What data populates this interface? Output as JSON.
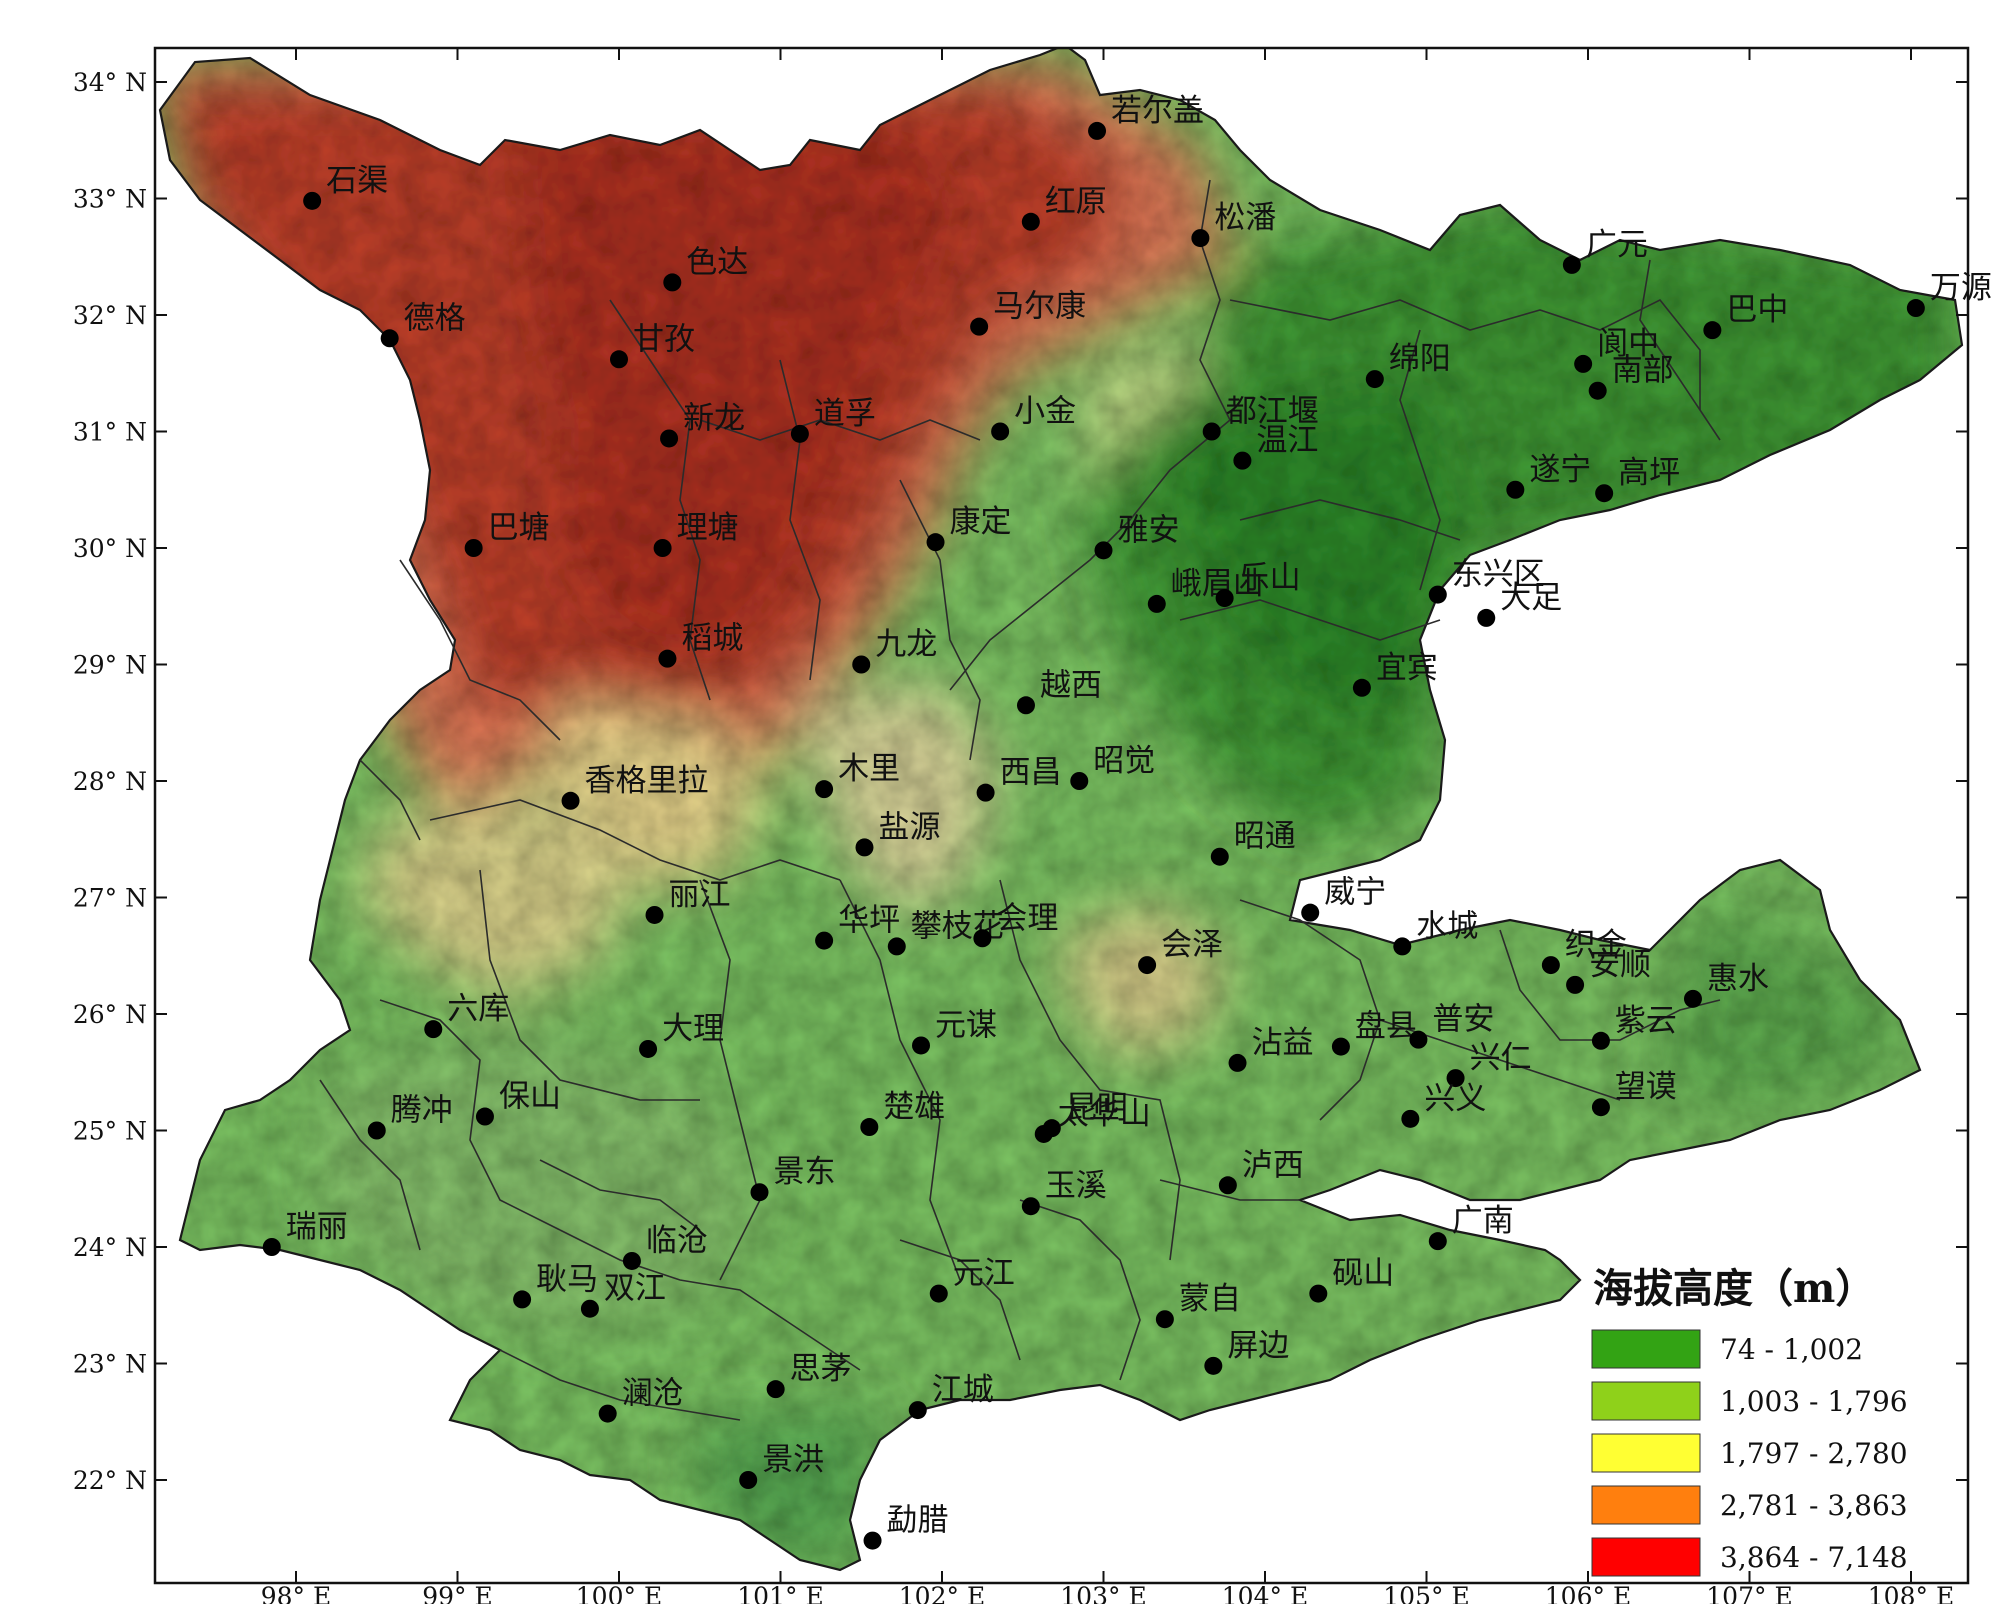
{
  "map": {
    "legend": {
      "title": "海拔高度（m）",
      "classes": [
        {
          "label": "74 - 1,002",
          "color": "#33a314"
        },
        {
          "label": "1,003 - 1,796",
          "color": "#8fd11a"
        },
        {
          "label": "1,797 - 2,780",
          "color": "#ffff33"
        },
        {
          "label": "2,781 - 3,863",
          "color": "#ff7f0e"
        },
        {
          "label": "3,864 - 7,148",
          "color": "#ff0000"
        }
      ]
    },
    "lat_ticks": [
      {
        "label": "34° N",
        "lat": 34
      },
      {
        "label": "33° N",
        "lat": 33
      },
      {
        "label": "32° N",
        "lat": 32
      },
      {
        "label": "31° N",
        "lat": 31
      },
      {
        "label": "30° N",
        "lat": 30
      },
      {
        "label": "29° N",
        "lat": 29
      },
      {
        "label": "28° N",
        "lat": 28
      },
      {
        "label": "27° N",
        "lat": 27
      },
      {
        "label": "26° N",
        "lat": 26
      },
      {
        "label": "25° N",
        "lat": 25
      },
      {
        "label": "24° N",
        "lat": 24
      },
      {
        "label": "23° N",
        "lat": 23
      },
      {
        "label": "22° N",
        "lat": 22
      }
    ],
    "lon_ticks": [
      {
        "label": "98° E",
        "lon": 98
      },
      {
        "label": "99° E",
        "lon": 99
      },
      {
        "label": "100° E",
        "lon": 100
      },
      {
        "label": "101° E",
        "lon": 101
      },
      {
        "label": "102° E",
        "lon": 102
      },
      {
        "label": "103° E",
        "lon": 103
      },
      {
        "label": "104° E",
        "lon": 104
      },
      {
        "label": "105° E",
        "lon": 105
      },
      {
        "label": "106° E",
        "lon": 106
      },
      {
        "label": "107° E",
        "lon": 107
      },
      {
        "label": "108° E",
        "lon": 108
      }
    ],
    "stations": [
      {
        "name": "若尔盖",
        "lon": 102.96,
        "lat": 33.58
      },
      {
        "name": "石渠",
        "lon": 98.1,
        "lat": 32.98
      },
      {
        "name": "红原",
        "lon": 102.55,
        "lat": 32.8
      },
      {
        "name": "松潘",
        "lon": 103.6,
        "lat": 32.66
      },
      {
        "name": "色达",
        "lon": 100.33,
        "lat": 32.28
      },
      {
        "name": "广元",
        "lon": 105.9,
        "lat": 32.43
      },
      {
        "name": "万源",
        "lon": 108.03,
        "lat": 32.06
      },
      {
        "name": "德格",
        "lon": 98.58,
        "lat": 31.8
      },
      {
        "name": "甘孜",
        "lon": 100.0,
        "lat": 31.62
      },
      {
        "name": "马尔康",
        "lon": 102.23,
        "lat": 31.9
      },
      {
        "name": "巴中",
        "lon": 106.77,
        "lat": 31.87
      },
      {
        "name": "绵阳",
        "lon": 104.68,
        "lat": 31.45
      },
      {
        "name": "阆中",
        "lon": 105.97,
        "lat": 31.58
      },
      {
        "name": "南部",
        "lon": 106.06,
        "lat": 31.35
      },
      {
        "name": "新龙",
        "lon": 100.31,
        "lat": 30.94
      },
      {
        "name": "道孚",
        "lon": 101.12,
        "lat": 30.98
      },
      {
        "name": "小金",
        "lon": 102.36,
        "lat": 31.0
      },
      {
        "name": "都江堰",
        "lon": 103.67,
        "lat": 31.0
      },
      {
        "name": "温江",
        "lon": 103.86,
        "lat": 30.75
      },
      {
        "name": "遂宁",
        "lon": 105.55,
        "lat": 30.5
      },
      {
        "name": "高坪",
        "lon": 106.1,
        "lat": 30.47
      },
      {
        "name": "巴塘",
        "lon": 99.1,
        "lat": 30.0
      },
      {
        "name": "理塘",
        "lon": 100.27,
        "lat": 30.0
      },
      {
        "name": "康定",
        "lon": 101.96,
        "lat": 30.05
      },
      {
        "name": "雅安",
        "lon": 103.0,
        "lat": 29.98
      },
      {
        "name": "峨眉山",
        "lon": 103.33,
        "lat": 29.52
      },
      {
        "name": "乐山",
        "lon": 103.75,
        "lat": 29.57
      },
      {
        "name": "东兴区",
        "lon": 105.07,
        "lat": 29.6
      },
      {
        "name": "大足",
        "lon": 105.37,
        "lat": 29.4
      },
      {
        "name": "稻城",
        "lon": 100.3,
        "lat": 29.05
      },
      {
        "name": "九龙",
        "lon": 101.5,
        "lat": 29.0
      },
      {
        "name": "越西",
        "lon": 102.52,
        "lat": 28.65
      },
      {
        "name": "宜宾",
        "lon": 104.6,
        "lat": 28.8
      },
      {
        "name": "香格里拉",
        "lon": 99.7,
        "lat": 27.83
      },
      {
        "name": "木里",
        "lon": 101.27,
        "lat": 27.93
      },
      {
        "name": "西昌",
        "lon": 102.27,
        "lat": 27.9
      },
      {
        "name": "昭觉",
        "lon": 102.85,
        "lat": 28.0
      },
      {
        "name": "盐源",
        "lon": 101.52,
        "lat": 27.43
      },
      {
        "name": "昭通",
        "lon": 103.72,
        "lat": 27.35
      },
      {
        "name": "丽江",
        "lon": 100.22,
        "lat": 26.85
      },
      {
        "name": "威宁",
        "lon": 104.28,
        "lat": 26.87
      },
      {
        "name": "华坪",
        "lon": 101.27,
        "lat": 26.63
      },
      {
        "name": "攀枝花",
        "lon": 101.72,
        "lat": 26.58
      },
      {
        "name": "会理",
        "lon": 102.25,
        "lat": 26.65
      },
      {
        "name": "会泽",
        "lon": 103.27,
        "lat": 26.42
      },
      {
        "name": "水城",
        "lon": 104.85,
        "lat": 26.58
      },
      {
        "name": "织金",
        "lon": 105.77,
        "lat": 26.42
      },
      {
        "name": "安顺",
        "lon": 105.92,
        "lat": 26.25
      },
      {
        "name": "惠水",
        "lon": 106.65,
        "lat": 26.13
      },
      {
        "name": "六库",
        "lon": 98.85,
        "lat": 25.87
      },
      {
        "name": "大理",
        "lon": 100.18,
        "lat": 25.7
      },
      {
        "name": "元谋",
        "lon": 101.87,
        "lat": 25.73
      },
      {
        "name": "沾益",
        "lon": 103.83,
        "lat": 25.58
      },
      {
        "name": "盘县",
        "lon": 104.47,
        "lat": 25.72
      },
      {
        "name": "普安",
        "lon": 104.95,
        "lat": 25.78
      },
      {
        "name": "兴仁",
        "lon": 105.18,
        "lat": 25.45
      },
      {
        "name": "紫云",
        "lon": 106.08,
        "lat": 25.77
      },
      {
        "name": "兴义",
        "lon": 104.9,
        "lat": 25.1
      },
      {
        "name": "望谟",
        "lon": 106.08,
        "lat": 25.2
      },
      {
        "name": "腾冲",
        "lon": 98.5,
        "lat": 25.0
      },
      {
        "name": "保山",
        "lon": 99.17,
        "lat": 25.12
      },
      {
        "name": "楚雄",
        "lon": 101.55,
        "lat": 25.03
      },
      {
        "name": "昆明",
        "lon": 102.68,
        "lat": 25.02
      },
      {
        "name": "太华山",
        "lon": 102.63,
        "lat": 24.97
      },
      {
        "name": "景东",
        "lon": 100.87,
        "lat": 24.47
      },
      {
        "name": "玉溪",
        "lon": 102.55,
        "lat": 24.35
      },
      {
        "name": "泸西",
        "lon": 103.77,
        "lat": 24.53
      },
      {
        "name": "瑞丽",
        "lon": 97.85,
        "lat": 24.0
      },
      {
        "name": "临沧",
        "lon": 100.08,
        "lat": 23.88
      },
      {
        "name": "广南",
        "lon": 105.07,
        "lat": 24.05
      },
      {
        "name": "耿马",
        "lon": 99.4,
        "lat": 23.55
      },
      {
        "name": "双江",
        "lon": 99.82,
        "lat": 23.47
      },
      {
        "name": "元江",
        "lon": 101.98,
        "lat": 23.6
      },
      {
        "name": "蒙自",
        "lon": 103.38,
        "lat": 23.38
      },
      {
        "name": "砚山",
        "lon": 104.33,
        "lat": 23.6
      },
      {
        "name": "屏边",
        "lon": 103.68,
        "lat": 22.98
      },
      {
        "name": "思茅",
        "lon": 100.97,
        "lat": 22.78
      },
      {
        "name": "澜沧",
        "lon": 99.93,
        "lat": 22.57
      },
      {
        "name": "江城",
        "lon": 101.85,
        "lat": 22.6
      },
      {
        "name": "景洪",
        "lon": 100.8,
        "lat": 22.0
      },
      {
        "name": "勐腊",
        "lon": 101.57,
        "lat": 21.48
      }
    ]
  }
}
